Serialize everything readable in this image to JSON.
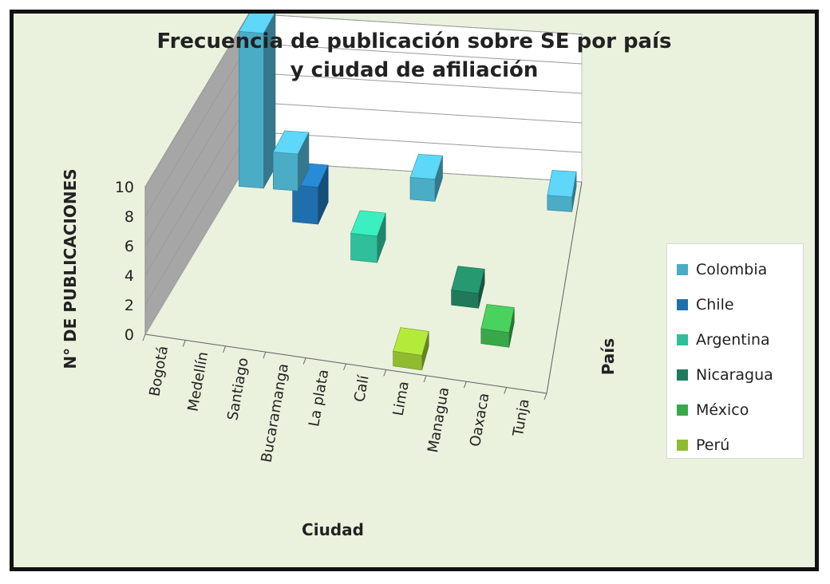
{
  "chart_data": {
    "type": "bar",
    "subtype": "3d-column",
    "title": "Frecuencia de publicación sobre SE por país y ciudad de afiliación",
    "title_lines": [
      "Frecuencia de publicación sobre SE por país",
      "y ciudad de afiliación"
    ],
    "xlabel": "Ciudad",
    "ylabel": "N° DE PUBLICACIONES",
    "zlabel": "País",
    "ylim": [
      0,
      10
    ],
    "yticks": [
      "0",
      "2",
      "4",
      "6",
      "8",
      "10"
    ],
    "categories": [
      "Bogotá",
      "Medellín",
      "Santiago",
      "Bucaramanga",
      "La plata",
      "Calí",
      "Lima",
      "Managua",
      "Oaxaca",
      "Tunja"
    ],
    "legend_position": "right",
    "grid": true,
    "series": [
      {
        "name": "Colombia",
        "color": "#4bacc6",
        "points": [
          {
            "category": "Bogotá",
            "value": 10.5
          },
          {
            "category": "Medellín",
            "value": 2.5
          },
          {
            "category": "Calí",
            "value": 1.5
          },
          {
            "category": "Tunja",
            "value": 1
          }
        ]
      },
      {
        "name": "Chile",
        "color": "#1f6fad",
        "points": [
          {
            "category": "Santiago",
            "value": 2.5
          }
        ]
      },
      {
        "name": "Argentina",
        "color": "#2fbf9a",
        "points": [
          {
            "category": "La plata",
            "value": 1.8
          }
        ]
      },
      {
        "name": "Nicaragua",
        "color": "#1e7a5a",
        "points": [
          {
            "category": "Managua",
            "value": 1
          }
        ]
      },
      {
        "name": "México",
        "color": "#3aa84a",
        "points": [
          {
            "category": "Oaxaca",
            "value": 1
          }
        ]
      },
      {
        "name": "Perú",
        "color": "#8fbc2f",
        "points": [
          {
            "category": "Lima",
            "value": 1
          }
        ]
      }
    ]
  }
}
